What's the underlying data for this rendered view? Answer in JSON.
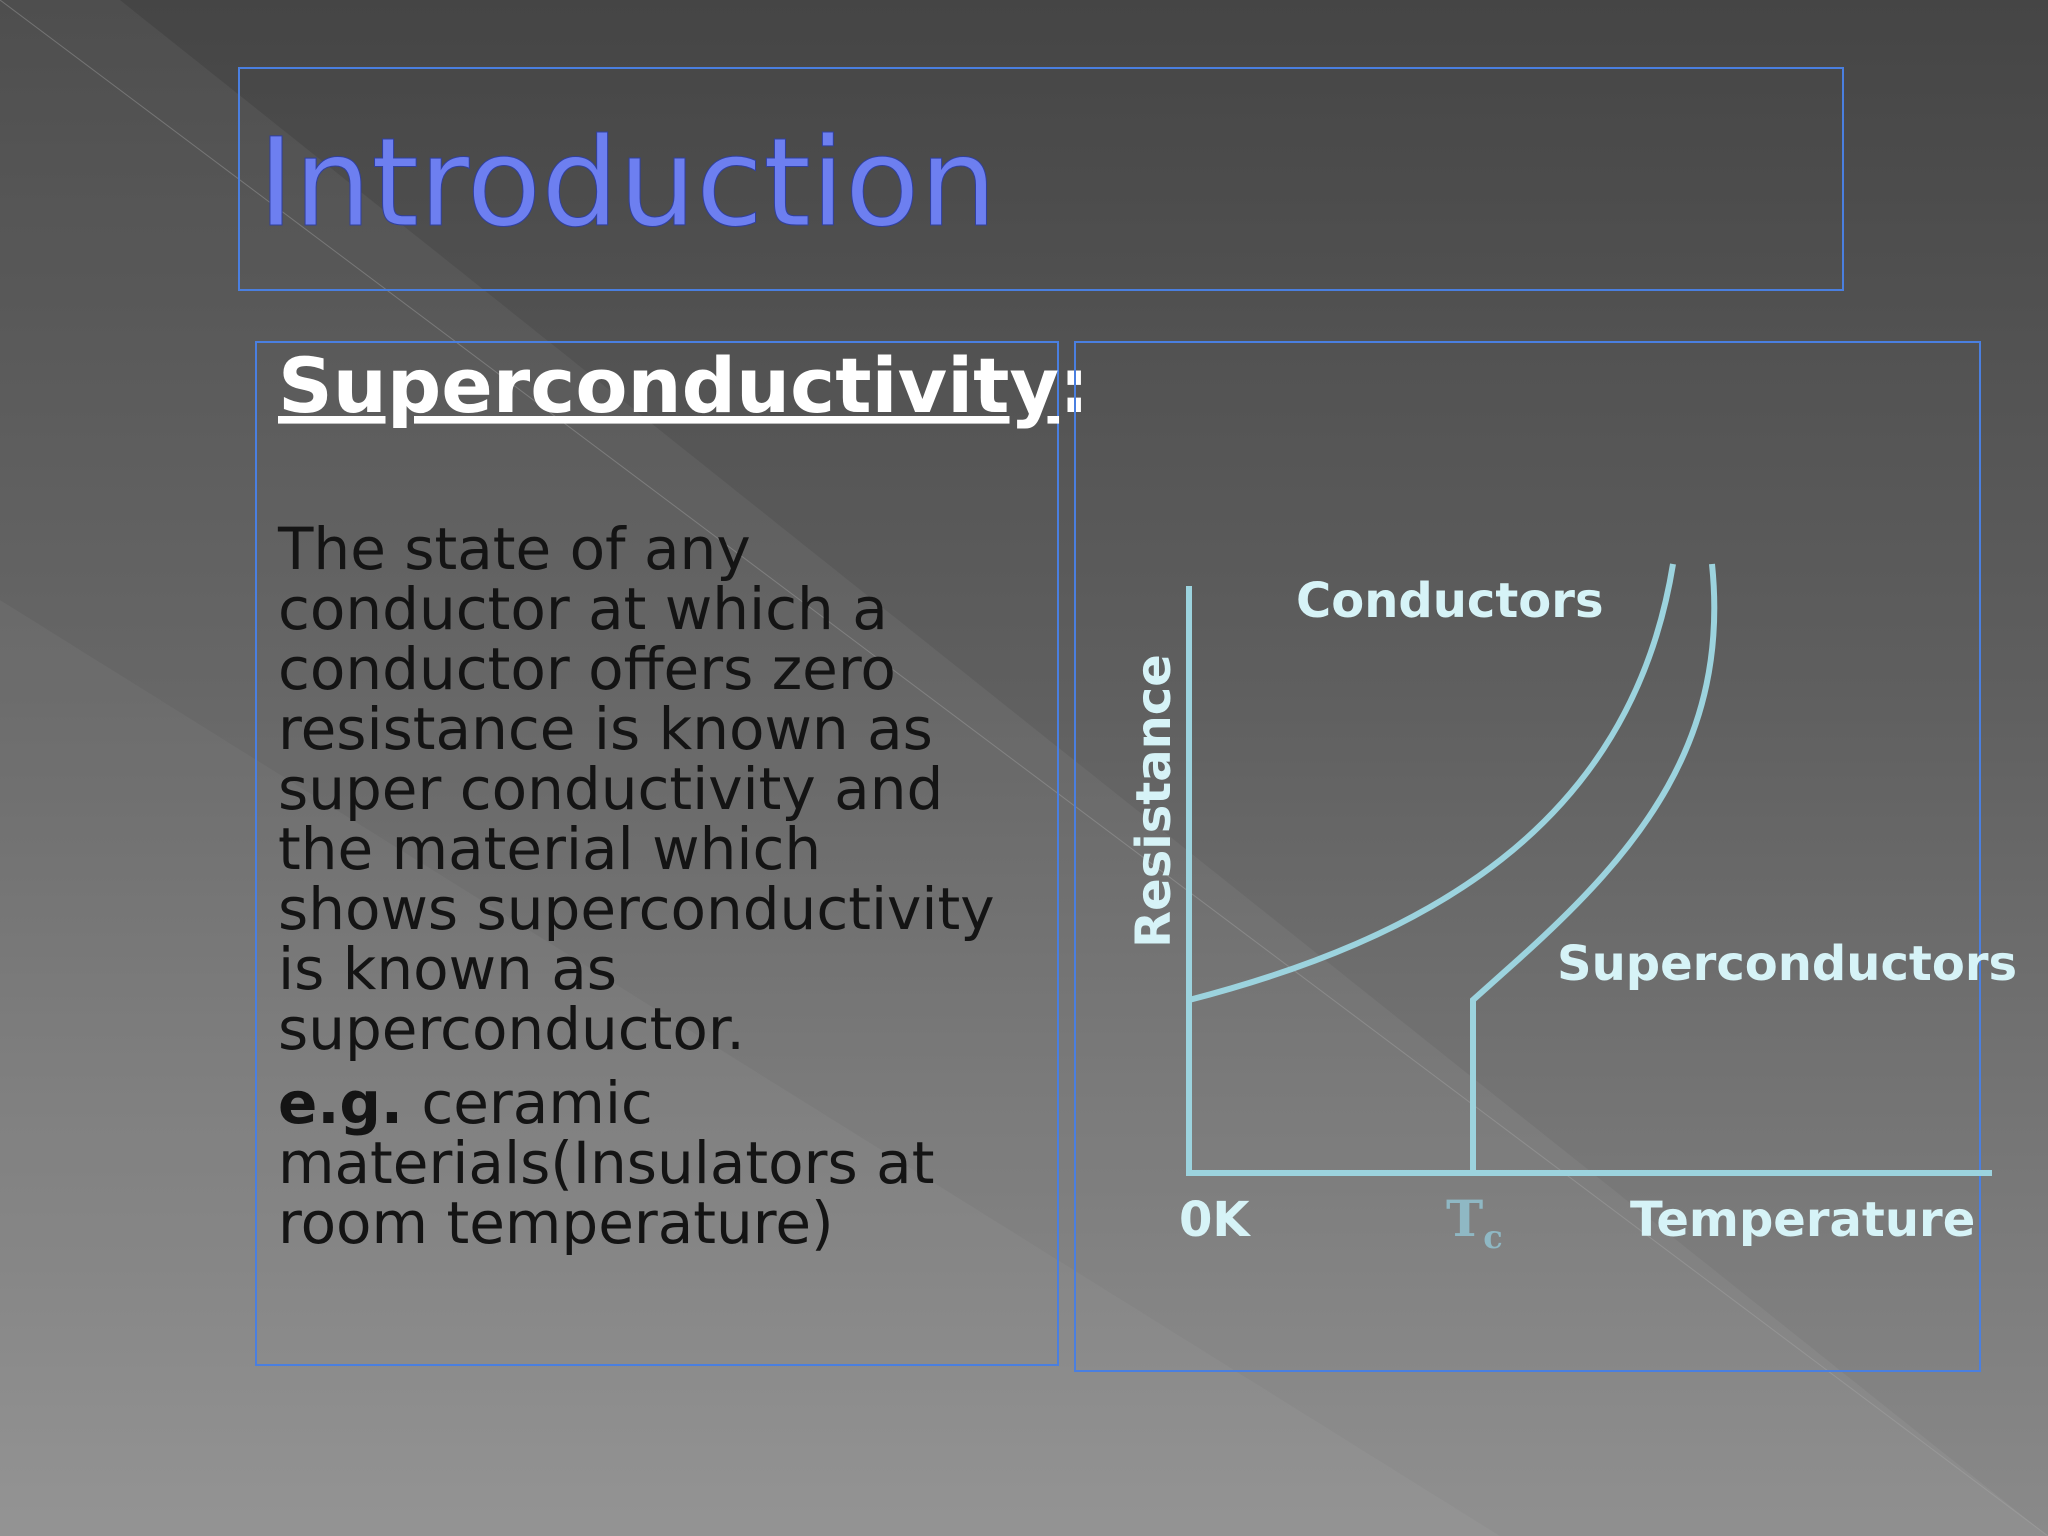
{
  "slide": {
    "title": "Introduction",
    "heading": "Superconductivity",
    "heading_colon": ":",
    "body_lines": [
      "The state of any",
      "conductor at which a",
      "conductor offers zero",
      "resistance is known as",
      "super conductivity and",
      "the material which",
      "shows superconductivity",
      "is known as",
      "superconductor."
    ],
    "example": {
      "lead": "e.g.",
      "lines": [
        " ceramic",
        "materials(Insulators at",
        "room temperature)"
      ]
    },
    "diagram": {
      "conductors_label": "Conductors",
      "superconductors_label": "Superconductors",
      "y_axis_label": "Resistance",
      "origin_label": "0K",
      "tc_label": {
        "main": "T",
        "sub": "c"
      },
      "x_axis_label": "Temperature"
    }
  }
}
